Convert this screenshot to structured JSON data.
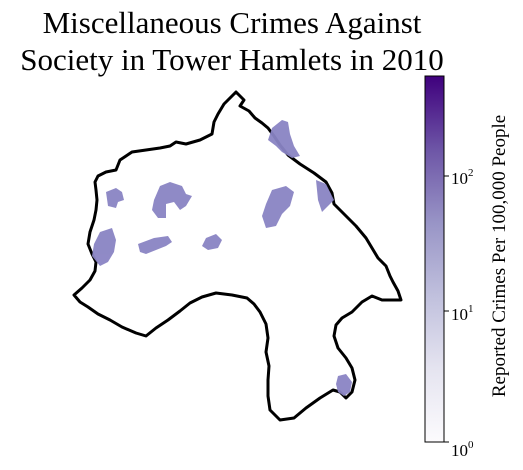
{
  "map": {
    "title_line1": "Miscellaneous Crimes Against",
    "title_line2": "Society in Tower Hamlets in 2010",
    "boundary_color": "#000000",
    "background_color": "#ffffff",
    "region_fill": "#8a84c4",
    "regions_shaded": 9
  },
  "colorbar": {
    "label": "Reported Crimes Per 100,000 People",
    "scale": "log",
    "range": [
      1,
      500
    ],
    "colormap": "Purples",
    "color_low": "#fcfbfd",
    "color_high": "#3f007d",
    "ticks": [
      {
        "base": "10",
        "exp": "0",
        "value": 1
      },
      {
        "base": "10",
        "exp": "1",
        "value": 10
      },
      {
        "base": "10",
        "exp": "2",
        "value": 100
      }
    ]
  }
}
